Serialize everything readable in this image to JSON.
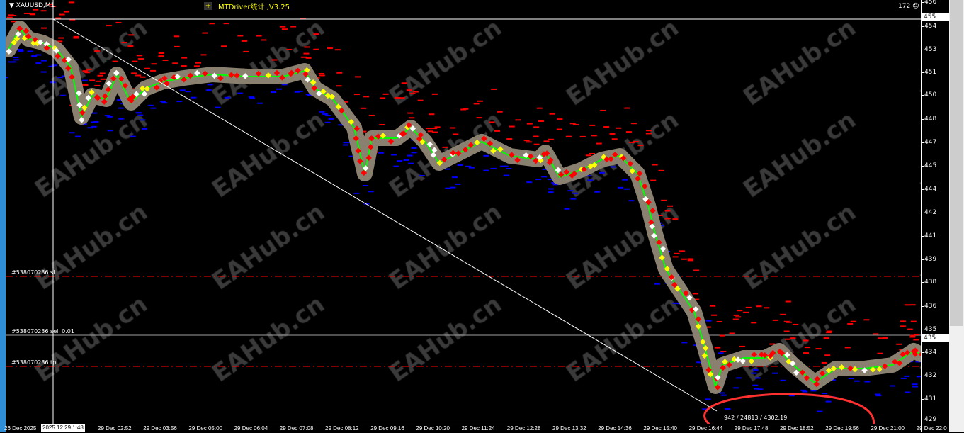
{
  "header": {
    "symbol": "XAUUSD,M1",
    "indicator_title": "MTDriver统计 ,V3.25",
    "indicator_button": "+",
    "counter": "172",
    "counter_icon": "smiley-icon"
  },
  "orders": [
    {
      "label": "#538070236 sl",
      "type": "stop-loss",
      "color": "#ff0000"
    },
    {
      "label": "#538070236 sell 0.01",
      "type": "entry",
      "color": "#a0a0a0"
    },
    {
      "label": "#538070236 tp",
      "type": "take-profit",
      "color": "#ff0000"
    }
  ],
  "price_axis": {
    "labels": [
      "456",
      "454",
      "453",
      "451",
      "450",
      "448",
      "447",
      "445",
      "444",
      "442",
      "441",
      "439",
      "438",
      "436",
      "435",
      "434",
      "432",
      "431",
      "429"
    ],
    "crosshair_price": "455",
    "bid_price": "435"
  },
  "time_axis": {
    "labels": [
      "26 Dec 2025",
      "29 Dec 02:52",
      "29 Dec 03:56",
      "29 Dec 05:00",
      "29 Dec 06:04",
      "29 Dec 07:08",
      "29 Dec 08:12",
      "29 Dec 09:16",
      "29 Dec 10:20",
      "29 Dec 11:24",
      "29 Dec 12:28",
      "29 Dec 13:32",
      "29 Dec 14:36",
      "29 Dec 15:40",
      "29 Dec 16:44",
      "29 Dec 17:48",
      "29 Dec 18:52",
      "29 Dec 19:56",
      "29 Dec 21:00",
      "29 Dec 22:0"
    ],
    "crosshair_time": "2025.12.29 1:48"
  },
  "stats": "942 / 24813 / 4302.19",
  "watermark": "EAHub.cn",
  "colors": {
    "background": "#000000",
    "buy": "#0000ff",
    "sell": "#ff0000",
    "price_line": "#00ff00",
    "indicator": "#ffff00",
    "annotation": "#ff3030"
  }
}
